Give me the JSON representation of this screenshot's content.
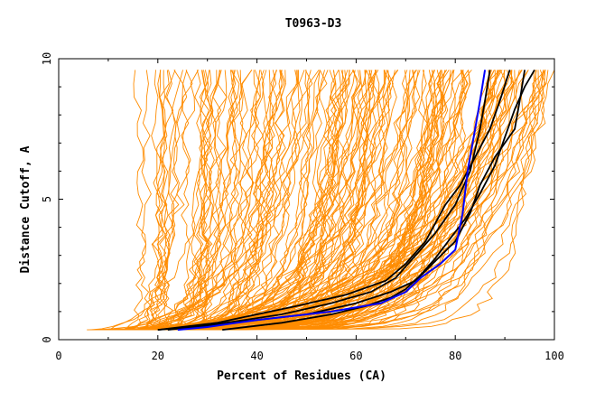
{
  "chart_data": {
    "type": "line",
    "title": "T0963-D3",
    "xlabel": "Percent of Residues (CA)",
    "ylabel": "Distance Cutoff, A",
    "xlim": [
      0,
      100
    ],
    "ylim": [
      0,
      10
    ],
    "xticks": [
      "0",
      "20",
      "40",
      "60",
      "80",
      "100"
    ],
    "yticks": [
      "0",
      "5",
      "10"
    ],
    "grid": false,
    "legend": "none",
    "colors": {
      "background_models": "#ff8c00",
      "highlight_models": "#000000",
      "reference_model": "#0000ff"
    },
    "background_model_count": 180,
    "background_envelope": {
      "x_at_cutoff_0_35": [
        5,
        33
      ],
      "x_at_cutoff_9_6": [
        17,
        100
      ]
    },
    "series": [
      {
        "color": "#0000ff",
        "points": [
          [
            24,
            0.35
          ],
          [
            30,
            0.45
          ],
          [
            40,
            0.7
          ],
          [
            55,
            1.0
          ],
          [
            65,
            1.3
          ],
          [
            70,
            1.7
          ],
          [
            73,
            2.2
          ],
          [
            77,
            2.7
          ],
          [
            80,
            3.2
          ],
          [
            81.5,
            4.5
          ],
          [
            82.5,
            6.0
          ],
          [
            84,
            7.5
          ],
          [
            85,
            8.5
          ],
          [
            86,
            9.6
          ]
        ]
      },
      {
        "color": "#000000",
        "points": [
          [
            20,
            0.35
          ],
          [
            30,
            0.5
          ],
          [
            45,
            0.9
          ],
          [
            55,
            1.3
          ],
          [
            63,
            1.7
          ],
          [
            68,
            2.2
          ],
          [
            72,
            3.0
          ],
          [
            76,
            3.8
          ],
          [
            80,
            4.8
          ],
          [
            83,
            6.0
          ],
          [
            85,
            7.5
          ],
          [
            86,
            8.5
          ],
          [
            87,
            9.6
          ]
        ]
      },
      {
        "color": "#000000",
        "points": [
          [
            20,
            0.35
          ],
          [
            32,
            0.6
          ],
          [
            48,
            1.2
          ],
          [
            58,
            1.6
          ],
          [
            66,
            2.1
          ],
          [
            70,
            2.7
          ],
          [
            74,
            3.5
          ],
          [
            78,
            4.8
          ],
          [
            81,
            5.5
          ],
          [
            84,
            6.5
          ],
          [
            87,
            7.5
          ],
          [
            89,
            8.5
          ],
          [
            91,
            9.6
          ]
        ]
      },
      {
        "color": "#000000",
        "points": [
          [
            22,
            0.35
          ],
          [
            35,
            0.6
          ],
          [
            50,
            0.9
          ],
          [
            60,
            1.3
          ],
          [
            67,
            1.7
          ],
          [
            72,
            2.1
          ],
          [
            76,
            2.8
          ],
          [
            80,
            3.5
          ],
          [
            83,
            4.5
          ],
          [
            85,
            5.5
          ],
          [
            88,
            6.5
          ],
          [
            92,
            7.5
          ],
          [
            93,
            8.5
          ],
          [
            94,
            9.6
          ]
        ]
      },
      {
        "color": "#000000",
        "points": [
          [
            33,
            0.35
          ],
          [
            45,
            0.6
          ],
          [
            55,
            0.9
          ],
          [
            62,
            1.2
          ],
          [
            67,
            1.5
          ],
          [
            70,
            1.8
          ],
          [
            73,
            2.3
          ],
          [
            76,
            2.9
          ],
          [
            79,
            3.6
          ],
          [
            82,
            4.3
          ],
          [
            85,
            5.2
          ],
          [
            88,
            6.2
          ],
          [
            90,
            7.2
          ],
          [
            92,
            8.2
          ],
          [
            94,
            9.0
          ],
          [
            96,
            9.6
          ]
        ]
      }
    ]
  }
}
